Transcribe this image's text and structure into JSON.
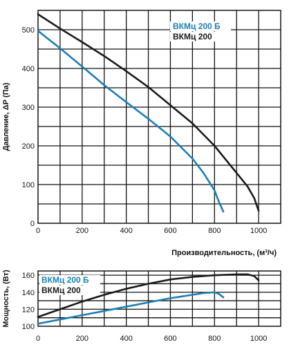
{
  "chart_data": [
    {
      "type": "line",
      "xlabel": "Производительность, (м³/ч)",
      "ylabel": "Давление, ΔР (Па)",
      "xlim": [
        0,
        1100
      ],
      "ylim": [
        0,
        550
      ],
      "xticks": [
        0,
        200,
        400,
        600,
        800,
        1000
      ],
      "yticks": [
        0,
        100,
        200,
        300,
        400,
        500
      ],
      "grid": true,
      "legend_position": "top-right",
      "series": [
        {
          "name": "ВКМц 200 Б",
          "color": "#1a7fb5",
          "x": [
            0,
            100,
            200,
            300,
            400,
            500,
            600,
            700,
            750,
            800,
            820,
            840
          ],
          "y": [
            497,
            452,
            405,
            357,
            313,
            270,
            224,
            167,
            130,
            85,
            55,
            30
          ]
        },
        {
          "name": "ВКМц 200",
          "color": "#1a1a1a",
          "x": [
            0,
            100,
            200,
            300,
            400,
            500,
            600,
            700,
            800,
            900,
            950,
            980,
            1000
          ],
          "y": [
            540,
            503,
            468,
            432,
            393,
            352,
            305,
            258,
            200,
            130,
            95,
            65,
            32
          ]
        }
      ]
    },
    {
      "type": "line",
      "xlabel": "",
      "ylabel": "Мощность, (Вт)",
      "xlim": [
        0,
        1100
      ],
      "ylim": [
        100,
        165
      ],
      "xticks": [
        0,
        200,
        400,
        600,
        800,
        1000
      ],
      "yticks": [
        100,
        120,
        140,
        160
      ],
      "grid": true,
      "legend_position": "top-left",
      "series": [
        {
          "name": "ВКМц 200 Б",
          "color": "#1a7fb5",
          "x": [
            0,
            100,
            200,
            300,
            400,
            500,
            600,
            700,
            750,
            800,
            820,
            840
          ],
          "y": [
            103,
            108,
            113,
            118,
            123,
            128,
            133,
            137,
            139,
            140,
            138,
            134
          ]
        },
        {
          "name": "ВКМц 200",
          "color": "#1a1a1a",
          "x": [
            0,
            100,
            200,
            300,
            400,
            500,
            600,
            700,
            800,
            900,
            950,
            980,
            1000
          ],
          "y": [
            111,
            120,
            129,
            137,
            144,
            150,
            155,
            158,
            160,
            161,
            161,
            159,
            154
          ]
        }
      ]
    }
  ]
}
